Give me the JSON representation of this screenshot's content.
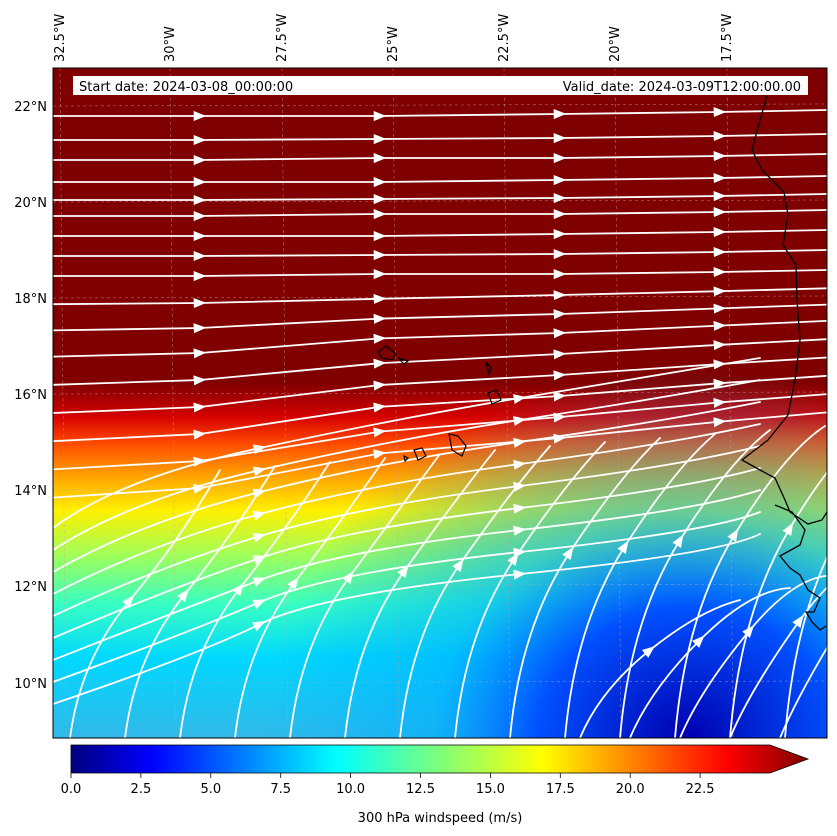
{
  "map": {
    "start_label": "Start date: 2024-03-08_00:00:00",
    "valid_label": "Valid_date: 2024-03-09T12:00:00.00",
    "lon_ticks": [
      "32.5°W",
      "30°W",
      "27.5°W",
      "25°W",
      "22.5°W",
      "20°W",
      "17.5°W"
    ],
    "lat_ticks": [
      "22°N",
      "20°N",
      "18°N",
      "16°N",
      "14°N",
      "12°N",
      "10°N"
    ],
    "extent": {
      "lon_min": -33.0,
      "lon_max": -15.5,
      "lat_min": 8.9,
      "lat_max": 22.8
    },
    "field": "300 hPa windspeed",
    "coastline_color": "#000000",
    "streamline_color": "#ffffff",
    "gridlines": true
  },
  "colorbar": {
    "label": "300 hPa windspeed (m/s)",
    "ticks": [
      "0.0",
      "2.5",
      "5.0",
      "7.5",
      "10.0",
      "12.5",
      "15.0",
      "17.5",
      "20.0",
      "22.5"
    ],
    "vmin": 0,
    "vmax": 25,
    "extend": "max",
    "cmap": "jet"
  }
}
